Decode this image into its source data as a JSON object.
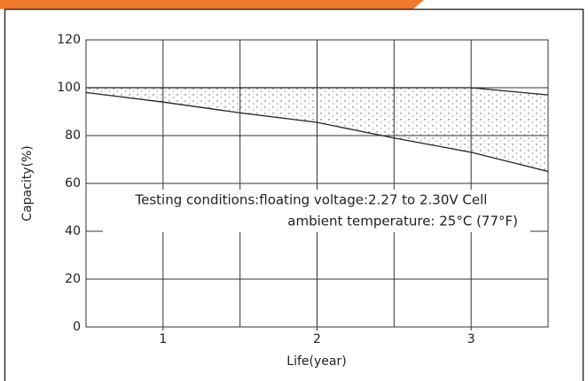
{
  "chart_data": {
    "type": "line",
    "ylabel": "Capacity(%)",
    "xlabel": "Life(year)",
    "annotations": [
      "Testing conditions:floating voltage:2.27 to 2.30V Cell",
      "ambient temperature: 25°C (77°F)"
    ],
    "x": [
      0.5,
      1,
      1.5,
      2,
      2.5,
      3,
      3.5
    ],
    "series": [
      {
        "color": "#222222",
        "values": [
          100,
          100,
          100,
          100,
          100,
          100,
          97
        ]
      },
      {
        "color": "#222222",
        "values": [
          98,
          94,
          89.5,
          85.5,
          79,
          73,
          65
        ]
      }
    ],
    "band_fill": "#e6e6e6",
    "xlim": [
      0.5,
      3.5
    ],
    "xticks": [
      1,
      2,
      3
    ],
    "xgrid": [
      1,
      1.5,
      2,
      2.5,
      3
    ],
    "ylim": [
      0,
      120
    ],
    "yticks": [
      0,
      20,
      40,
      60,
      80,
      100,
      120
    ],
    "grid": true
  }
}
